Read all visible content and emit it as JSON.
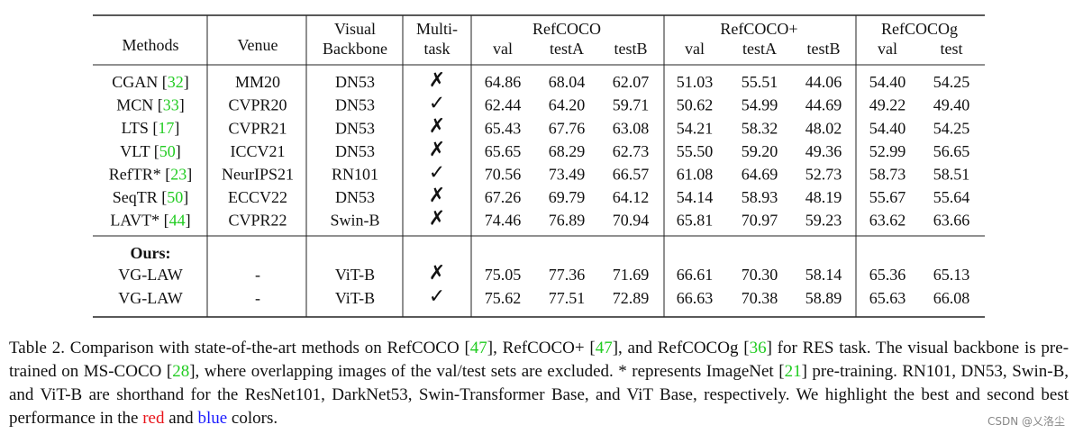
{
  "table": {
    "header": {
      "methods": "Methods",
      "venue": "Venue",
      "backbone": [
        "Visual",
        "Backbone"
      ],
      "multitask": [
        "Multi-",
        "task"
      ],
      "groups": [
        {
          "name": "RefCOCO",
          "columns": [
            "val",
            "testA",
            "testB"
          ]
        },
        {
          "name": "RefCOCO+",
          "columns": [
            "val",
            "testA",
            "testB"
          ]
        },
        {
          "name": "RefCOCOg",
          "columns": [
            "val",
            "test"
          ]
        }
      ]
    },
    "rows": [
      {
        "method": [
          {
            "text": "CGAN ["
          },
          {
            "text": "32",
            "color": "#22cc22"
          },
          {
            "text": "]"
          }
        ],
        "venue": "MM20",
        "backbone": "DN53",
        "multitask": "✗",
        "scores": [
          {
            "text": "64.86"
          },
          {
            "text": "68.04"
          },
          {
            "text": "62.07"
          },
          {
            "text": "51.03"
          },
          {
            "text": "55.51"
          },
          {
            "text": "44.06"
          },
          {
            "text": "54.40"
          },
          {
            "text": "54.25"
          }
        ]
      },
      {
        "method": [
          {
            "text": "MCN ["
          },
          {
            "text": "33",
            "color": "#22cc22"
          },
          {
            "text": "]"
          }
        ],
        "venue": "CVPR20",
        "backbone": "DN53",
        "multitask": "✓",
        "scores": [
          {
            "text": "62.44"
          },
          {
            "text": "64.20"
          },
          {
            "text": "59.71"
          },
          {
            "text": "50.62"
          },
          {
            "text": "54.99"
          },
          {
            "text": "44.69"
          },
          {
            "text": "49.22"
          },
          {
            "text": "49.40"
          }
        ]
      },
      {
        "method": [
          {
            "text": "LTS ["
          },
          {
            "text": "17",
            "color": "#22cc22"
          },
          {
            "text": "]"
          }
        ],
        "venue": "CVPR21",
        "backbone": "DN53",
        "multitask": "✗",
        "scores": [
          {
            "text": "65.43"
          },
          {
            "text": "67.76"
          },
          {
            "text": "63.08"
          },
          {
            "text": "54.21"
          },
          {
            "text": "58.32"
          },
          {
            "text": "48.02"
          },
          {
            "text": "54.40"
          },
          {
            "text": "54.25"
          }
        ]
      },
      {
        "method": [
          {
            "text": "VLT ["
          },
          {
            "text": "50",
            "color": "#22cc22"
          },
          {
            "text": "]"
          }
        ],
        "venue": "ICCV21",
        "backbone": "DN53",
        "multitask": "✗",
        "scores": [
          {
            "text": "65.65"
          },
          {
            "text": "68.29"
          },
          {
            "text": "62.73"
          },
          {
            "text": "55.50"
          },
          {
            "text": "59.20"
          },
          {
            "text": "49.36"
          },
          {
            "text": "52.99"
          },
          {
            "text": "56.65"
          }
        ]
      },
      {
        "method": [
          {
            "text": "RefTR* ["
          },
          {
            "text": "23",
            "color": "#22cc22"
          },
          {
            "text": "]"
          }
        ],
        "venue": "NeurIPS21",
        "backbone": "RN101",
        "multitask": "✓",
        "scores": [
          {
            "text": "70.56"
          },
          {
            "text": "73.49"
          },
          {
            "text": "66.57"
          },
          {
            "text": "61.08"
          },
          {
            "text": "64.69"
          },
          {
            "text": "52.73"
          },
          {
            "text": "58.73"
          },
          {
            "text": "58.51"
          }
        ]
      },
      {
        "method": [
          {
            "text": "SeqTR ["
          },
          {
            "text": "50",
            "color": "#22cc22"
          },
          {
            "text": "]"
          }
        ],
        "venue": "ECCV22",
        "backbone": "DN53",
        "multitask": "✗",
        "scores": [
          {
            "text": "67.26"
          },
          {
            "text": "69.79"
          },
          {
            "text": "64.12"
          },
          {
            "text": "54.14"
          },
          {
            "text": "58.93"
          },
          {
            "text": "48.19"
          },
          {
            "text": "55.67"
          },
          {
            "text": "55.64"
          }
        ]
      },
      {
        "method": [
          {
            "text": "LAVT* ["
          },
          {
            "text": "44",
            "color": "#22cc22"
          },
          {
            "text": "]"
          }
        ],
        "venue": "CVPR22",
        "backbone": "Swin-B",
        "multitask": "✗",
        "scores": [
          {
            "text": "74.46"
          },
          {
            "text": "76.89"
          },
          {
            "text": "70.94"
          },
          {
            "text": "65.81"
          },
          {
            "text": "70.97",
            "color": "#e8141a"
          },
          {
            "text": "59.23",
            "color": "#e8141a"
          },
          {
            "text": "63.62"
          },
          {
            "text": "63.66"
          }
        ]
      }
    ],
    "ours_label": "Ours:",
    "ours_rows": [
      {
        "method": [
          {
            "text": "VG-LAW"
          }
        ],
        "venue": "-",
        "backbone": "ViT-B",
        "multitask": "✗",
        "scores": [
          {
            "text": "75.05",
            "color": "#1a1aff"
          },
          {
            "text": "77.36",
            "color": "#1a1aff"
          },
          {
            "text": "71.69",
            "color": "#1a1aff"
          },
          {
            "text": "66.61",
            "color": "#1a1aff"
          },
          {
            "text": "70.30"
          },
          {
            "text": "58.14"
          },
          {
            "text": "65.36",
            "color": "#1a1aff"
          },
          {
            "text": "65.13",
            "color": "#1a1aff"
          }
        ]
      },
      {
        "method": [
          {
            "text": "VG-LAW"
          }
        ],
        "venue": "-",
        "backbone": "ViT-B",
        "multitask": "✓",
        "scores": [
          {
            "text": "75.62",
            "color": "#e8141a"
          },
          {
            "text": "77.51",
            "color": "#e8141a"
          },
          {
            "text": "72.89",
            "color": "#e8141a"
          },
          {
            "text": "66.63",
            "color": "#e8141a"
          },
          {
            "text": "70.38",
            "color": "#1a1aff"
          },
          {
            "text": "58.89",
            "color": "#1a1aff"
          },
          {
            "text": "65.63",
            "color": "#e8141a"
          },
          {
            "text": "66.08",
            "color": "#e8141a"
          }
        ]
      }
    ]
  },
  "caption": [
    {
      "text": "Table 2. Comparison with state-of-the-art methods on RefCOCO ["
    },
    {
      "text": "47",
      "color": "#22cc22"
    },
    {
      "text": "], RefCOCO+ ["
    },
    {
      "text": "47",
      "color": "#22cc22"
    },
    {
      "text": "], and RefCOCOg ["
    },
    {
      "text": "36",
      "color": "#22cc22"
    },
    {
      "text": "] for RES task. The visual backbone is pre-trained on MS-COCO ["
    },
    {
      "text": "28",
      "color": "#22cc22"
    },
    {
      "text": "], where overlapping images of the val/test sets are excluded. * represents ImageNet ["
    },
    {
      "text": "21",
      "color": "#22cc22"
    },
    {
      "text": "] pre-training. RN101, DN53, Swin-B, and ViT-B are shorthand for the ResNet101, DarkNet53, Swin-Transformer Base, and ViT Base, respectively. We highlight the best and second best performance in the "
    },
    {
      "text": "red",
      "color": "#e8141a"
    },
    {
      "text": " and "
    },
    {
      "text": "blue",
      "color": "#1a1aff"
    },
    {
      "text": " colors."
    }
  ],
  "watermark": "CSDN @乂洛尘"
}
